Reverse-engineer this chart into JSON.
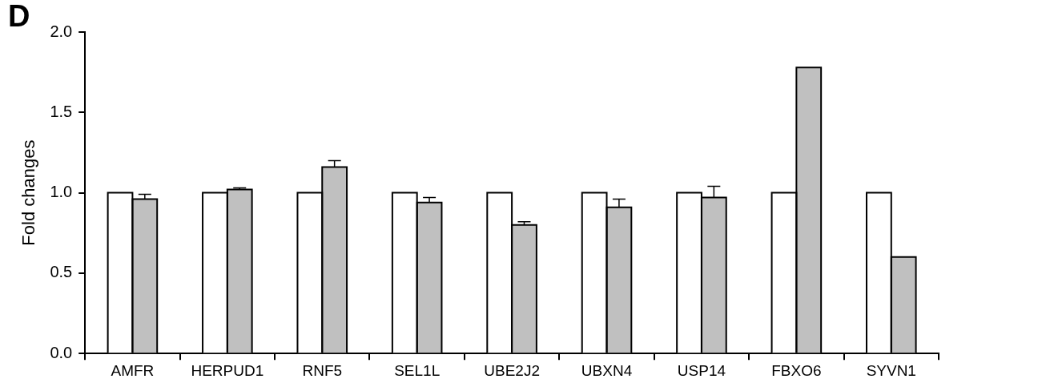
{
  "chart_data": {
    "type": "bar",
    "categories": [
      "AMFR",
      "HERPUD1",
      "RNF5",
      "SEL1L",
      "UBE2J2",
      "UBXN4",
      "USP14",
      "FBXO6",
      "SYVN1"
    ],
    "series": [
      {
        "color": "#ffffff",
        "values": [
          1.0,
          1.0,
          1.0,
          1.0,
          1.0,
          1.0,
          1.0,
          1.0,
          1.0
        ]
      },
      {
        "color": "#c0c0c0",
        "values": [
          0.96,
          1.02,
          1.16,
          0.94,
          0.8,
          0.91,
          0.97,
          1.78,
          0.6
        ],
        "errors": [
          0.03,
          0.01,
          0.04,
          0.03,
          0.02,
          0.05,
          0.07,
          null,
          null
        ]
      }
    ],
    "ylabel": "Fold changes",
    "ylim": [
      0,
      2
    ],
    "yticks": [
      {
        "value": 0,
        "label": "0.0"
      },
      {
        "value": 0.5,
        "label": "0.5"
      },
      {
        "value": 1,
        "label": "1.0"
      },
      {
        "value": 1.5,
        "label": "1.5"
      },
      {
        "value": 2,
        "label": "2.0"
      }
    ],
    "annotations": [
      "D"
    ],
    "grid": false,
    "legend": false
  }
}
